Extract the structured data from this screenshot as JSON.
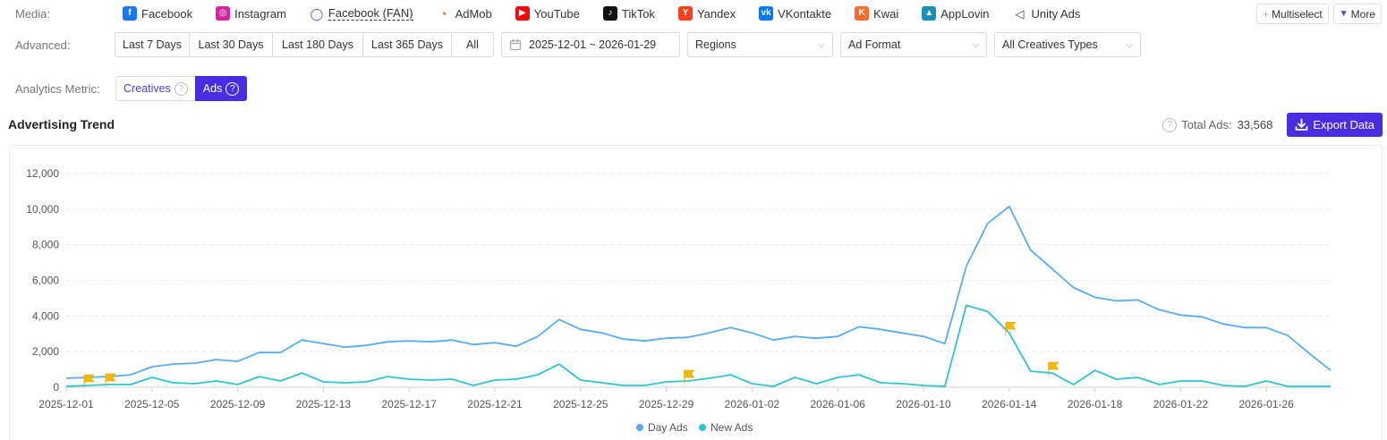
{
  "media": {
    "label": "Media:",
    "items": [
      {
        "name": "facebook",
        "label": "Facebook",
        "color": "#1877f2",
        "glyph": "f"
      },
      {
        "name": "instagram",
        "label": "Instagram",
        "color": "#d6249f",
        "glyph": "◎"
      },
      {
        "name": "facebook-fan",
        "label": "Facebook (FAN)",
        "color": "#5b3fb0",
        "glyph": "◯"
      },
      {
        "name": "admob",
        "label": "AdMob",
        "color": "#ea4335",
        "glyph": "◔"
      },
      {
        "name": "youtube",
        "label": "YouTube",
        "color": "#ff0000",
        "glyph": "▶"
      },
      {
        "name": "tiktok",
        "label": "TikTok",
        "color": "#111111",
        "glyph": "♪"
      },
      {
        "name": "yandex",
        "label": "Yandex",
        "color": "#fc3f1d",
        "glyph": "Y"
      },
      {
        "name": "vkontakte",
        "label": "VKontakte",
        "color": "#0077ff",
        "glyph": "vk"
      },
      {
        "name": "kwai",
        "label": "Kwai",
        "color": "#ff6a24",
        "glyph": "K"
      },
      {
        "name": "applovin",
        "label": "AppLovin",
        "color": "#1a8fb8",
        "glyph": "▲"
      },
      {
        "name": "unity-ads",
        "label": "Unity Ads",
        "color": "#444444",
        "glyph": "◁"
      }
    ],
    "multiselect_label": "Multiselect",
    "more_label": "More"
  },
  "advanced": {
    "label": "Advanced:",
    "ranges": [
      "Last 7 Days",
      "Last 30 Days",
      "Last 180 Days",
      "Last 365 Days",
      "All"
    ],
    "date_range": "2025-12-01 ~ 2026-01-29",
    "regions": "Regions",
    "ad_format": "Ad Format",
    "creative_types": "All Creatives Types"
  },
  "metric": {
    "label": "Analytics Metric:",
    "creatives": "Creatives",
    "ads": "Ads",
    "selected": "ads"
  },
  "trend": {
    "title": "Advertising Trend",
    "total_label": "Total Ads:",
    "total_value": "33,568",
    "export_label": "Export Data"
  },
  "colors": {
    "accent": "#4a2de3",
    "day_ads": "#5aabf5",
    "new_ads": "#2ec4d0",
    "flag": "#f5b800"
  },
  "chart_data": {
    "type": "line",
    "x": [
      "2025-12-01",
      "2025-12-02",
      "2025-12-03",
      "2025-12-04",
      "2025-12-05",
      "2025-12-06",
      "2025-12-07",
      "2025-12-08",
      "2025-12-09",
      "2025-12-10",
      "2025-12-11",
      "2025-12-12",
      "2025-12-13",
      "2025-12-14",
      "2025-12-15",
      "2025-12-16",
      "2025-12-17",
      "2025-12-18",
      "2025-12-19",
      "2025-12-20",
      "2025-12-21",
      "2025-12-22",
      "2025-12-23",
      "2025-12-24",
      "2025-12-25",
      "2025-12-26",
      "2025-12-27",
      "2025-12-28",
      "2025-12-29",
      "2025-12-30",
      "2025-12-31",
      "2026-01-01",
      "2026-01-02",
      "2026-01-03",
      "2026-01-04",
      "2026-01-05",
      "2026-01-06",
      "2026-01-07",
      "2026-01-08",
      "2026-01-09",
      "2026-01-10",
      "2026-01-11",
      "2026-01-12",
      "2026-01-13",
      "2026-01-14",
      "2026-01-15",
      "2026-01-16",
      "2026-01-17",
      "2026-01-18",
      "2026-01-19",
      "2026-01-20",
      "2026-01-21",
      "2026-01-22",
      "2026-01-23",
      "2026-01-24",
      "2026-01-25",
      "2026-01-26",
      "2026-01-27",
      "2026-01-28",
      "2026-01-29"
    ],
    "x_tick_labels": [
      "2025-12-01",
      "2025-12-05",
      "2025-12-09",
      "2025-12-13",
      "2025-12-17",
      "2025-12-21",
      "2025-12-25",
      "2025-12-29",
      "2026-01-02",
      "2026-01-06",
      "2026-01-10",
      "2026-01-14",
      "2026-01-18",
      "2026-01-22",
      "2026-01-26"
    ],
    "series": [
      {
        "name": "Day Ads",
        "values": [
          500,
          550,
          600,
          700,
          1150,
          1300,
          1350,
          1550,
          1450,
          1950,
          1950,
          2650,
          2450,
          2250,
          2350,
          2550,
          2600,
          2550,
          2650,
          2400,
          2500,
          2300,
          2850,
          3800,
          3250,
          3050,
          2700,
          2600,
          2750,
          2800,
          3050,
          3350,
          3050,
          2650,
          2850,
          2750,
          2850,
          3400,
          3250,
          3050,
          2850,
          2450,
          6800,
          9200,
          10150,
          7700,
          6650,
          5600,
          5050,
          4850,
          4900,
          4350,
          4050,
          3950,
          3550,
          3350,
          3350,
          2900,
          1900,
          950
        ]
      },
      {
        "name": "New Ads",
        "values": [
          50,
          100,
          150,
          150,
          550,
          250,
          200,
          350,
          150,
          600,
          350,
          800,
          300,
          250,
          300,
          600,
          450,
          400,
          450,
          100,
          400,
          450,
          700,
          1300,
          400,
          250,
          100,
          100,
          300,
          350,
          500,
          700,
          200,
          50,
          550,
          200,
          550,
          700,
          250,
          200,
          100,
          50,
          4600,
          4250,
          3050,
          900,
          800,
          150,
          950,
          450,
          550,
          150,
          350,
          350,
          100,
          50,
          350,
          50,
          50,
          50
        ]
      }
    ],
    "flag_dates": [
      "2025-12-02",
      "2025-12-03",
      "2025-12-30",
      "2026-01-14",
      "2026-01-16"
    ],
    "ylim": [
      0,
      12000
    ],
    "y_ticks": [
      0,
      2000,
      4000,
      6000,
      8000,
      10000,
      12000
    ],
    "y_tick_labels": [
      "0",
      "2,000",
      "4,000",
      "6,000",
      "8,000",
      "10,000",
      "12,000"
    ],
    "grid": true,
    "legend_position": "bottom-center"
  }
}
